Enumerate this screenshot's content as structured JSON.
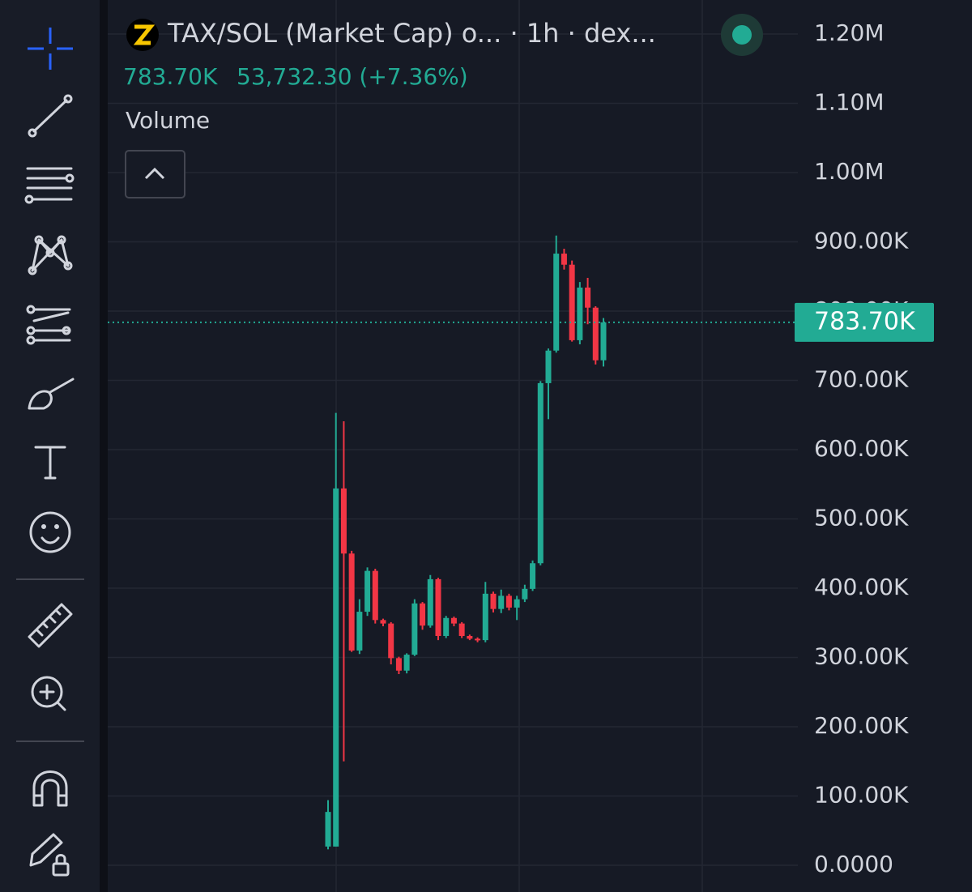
{
  "chart_data": {
    "type": "candlestick",
    "title": "TAX/SOL (Market Cap) o... · 1h · dex...",
    "legend_values": [
      "783.70K",
      "53,732.30 (+7.36%)"
    ],
    "indicator": "Volume",
    "up_color": "#22ab94",
    "down_color": "#f23645",
    "grid": true,
    "ylim": [
      0,
      1200000
    ],
    "yticks": [
      {
        "value": 0,
        "label": "0.0000"
      },
      {
        "value": 100000,
        "label": "100.00K"
      },
      {
        "value": 200000,
        "label": "200.00K"
      },
      {
        "value": 300000,
        "label": "300.00K"
      },
      {
        "value": 400000,
        "label": "400.00K"
      },
      {
        "value": 500000,
        "label": "500.00K"
      },
      {
        "value": 600000,
        "label": "600.00K"
      },
      {
        "value": 700000,
        "label": "700.00K"
      },
      {
        "value": 800000,
        "label": "800.00K"
      },
      {
        "value": 900000,
        "label": "900.00K"
      },
      {
        "value": 1000000,
        "label": "1.00M"
      },
      {
        "value": 1100000,
        "label": "1.10M"
      },
      {
        "value": 1200000,
        "label": "1.20M"
      }
    ],
    "last_price": {
      "value": 783700,
      "label": "783.70K"
    },
    "open": [
      27000,
      27000,
      544000,
      450000,
      310000,
      366000,
      425000,
      354000,
      349000,
      299000,
      281000,
      304000,
      378000,
      346000,
      413000,
      331000,
      357000,
      349000,
      331000,
      327000,
      325000,
      392000,
      370000,
      389000,
      372000,
      384000,
      399000,
      436000,
      696000,
      743000,
      883000,
      867000,
      758000,
      834000,
      805000,
      729000
    ],
    "high": [
      94000,
      653000,
      641000,
      454000,
      384000,
      430000,
      428000,
      356000,
      351000,
      301000,
      306000,
      384000,
      380000,
      419000,
      415000,
      360000,
      359000,
      351000,
      333000,
      329000,
      409000,
      395000,
      398000,
      392000,
      389000,
      405000,
      440000,
      699000,
      746000,
      909000,
      890000,
      873000,
      842000,
      848000,
      807000,
      790000
    ],
    "low": [
      23000,
      27000,
      150000,
      308000,
      305000,
      360000,
      349000,
      345000,
      290000,
      276000,
      277000,
      302000,
      340000,
      343000,
      325000,
      328000,
      345000,
      328000,
      325000,
      322000,
      322000,
      365000,
      364000,
      368000,
      354000,
      380000,
      396000,
      433000,
      644000,
      740000,
      860000,
      756000,
      752000,
      781000,
      723000,
      720000
    ],
    "close": [
      77000,
      544000,
      450000,
      310000,
      366000,
      425000,
      354000,
      349000,
      299000,
      281000,
      304000,
      378000,
      346000,
      413000,
      331000,
      357000,
      349000,
      331000,
      327000,
      325000,
      392000,
      370000,
      389000,
      372000,
      384000,
      399000,
      436000,
      696000,
      743000,
      883000,
      867000,
      758000,
      834000,
      805000,
      729000,
      783700
    ]
  }
}
